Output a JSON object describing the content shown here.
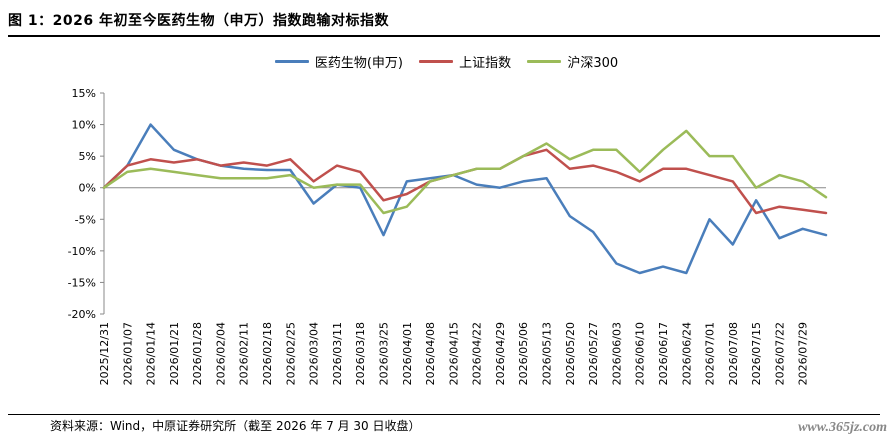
{
  "title": "图 1：2026 年初至今医药生物（申万）指数跑输对标指数",
  "source": "资料来源：Wind，中原证券研究所（截至 2026 年 7 月 30 日收盘）",
  "watermark": "www.365jz.com",
  "chart_data": {
    "type": "line",
    "title": "",
    "xlabel": "",
    "ylabel": "",
    "ylim": [
      -20,
      15
    ],
    "yticks": [
      -20,
      -15,
      -10,
      -5,
      0,
      5,
      10,
      15
    ],
    "ytick_labels": [
      "-20%",
      "-15%",
      "-10%",
      "-5%",
      "0%",
      "5%",
      "10%",
      "15%"
    ],
    "grid": false,
    "legend_position": "top-center",
    "x_dates": [
      "2025/12/31",
      "2026/01/07",
      "2026/01/14",
      "2026/01/21",
      "2026/01/28",
      "2026/02/04",
      "2026/02/11",
      "2026/02/18",
      "2026/02/25",
      "2026/03/04",
      "2026/03/11",
      "2026/03/18",
      "2026/03/25",
      "2026/04/01",
      "2026/04/08",
      "2026/04/15",
      "2026/04/22",
      "2026/04/29",
      "2026/05/06",
      "2026/05/13",
      "2026/05/20",
      "2026/05/27",
      "2026/06/03",
      "2026/06/10",
      "2026/06/17",
      "2026/06/24",
      "2026/07/01",
      "2026/07/08",
      "2026/07/15",
      "2026/07/22",
      "2026/07/29",
      "2026/07/30"
    ],
    "series": [
      {
        "name": "医药生物(申万)",
        "color": "#4a7ebb",
        "values": [
          0,
          3.5,
          10,
          6,
          4.5,
          3.5,
          3,
          2.8,
          2.8,
          -2.5,
          0.5,
          0,
          -7.5,
          1,
          1.5,
          2,
          0.5,
          0,
          1,
          1.5,
          -4.5,
          -7,
          -12,
          -13.5,
          -12.5,
          -13.5,
          -5,
          -9,
          -2,
          -8,
          -6.5,
          -7.5
        ]
      },
      {
        "name": "上证指数",
        "color": "#c0504d",
        "values": [
          0,
          3.5,
          4.5,
          4,
          4.5,
          3.5,
          4,
          3.5,
          4.5,
          1,
          3.5,
          2.5,
          -2,
          -1,
          1,
          2,
          3,
          3,
          5,
          6,
          3,
          3.5,
          2.5,
          1,
          3,
          3,
          2,
          1,
          -4,
          -3,
          -3.5,
          -4
        ]
      },
      {
        "name": "沪深300",
        "color": "#9bbb59",
        "values": [
          0,
          2.5,
          3,
          2.5,
          2,
          1.5,
          1.5,
          1.5,
          2,
          0,
          0.5,
          0.5,
          -4,
          -3,
          1,
          2,
          3,
          3,
          5,
          7,
          4.5,
          6,
          6,
          2.5,
          6,
          9,
          5,
          5,
          0,
          2,
          1,
          -1.5
        ]
      }
    ]
  }
}
